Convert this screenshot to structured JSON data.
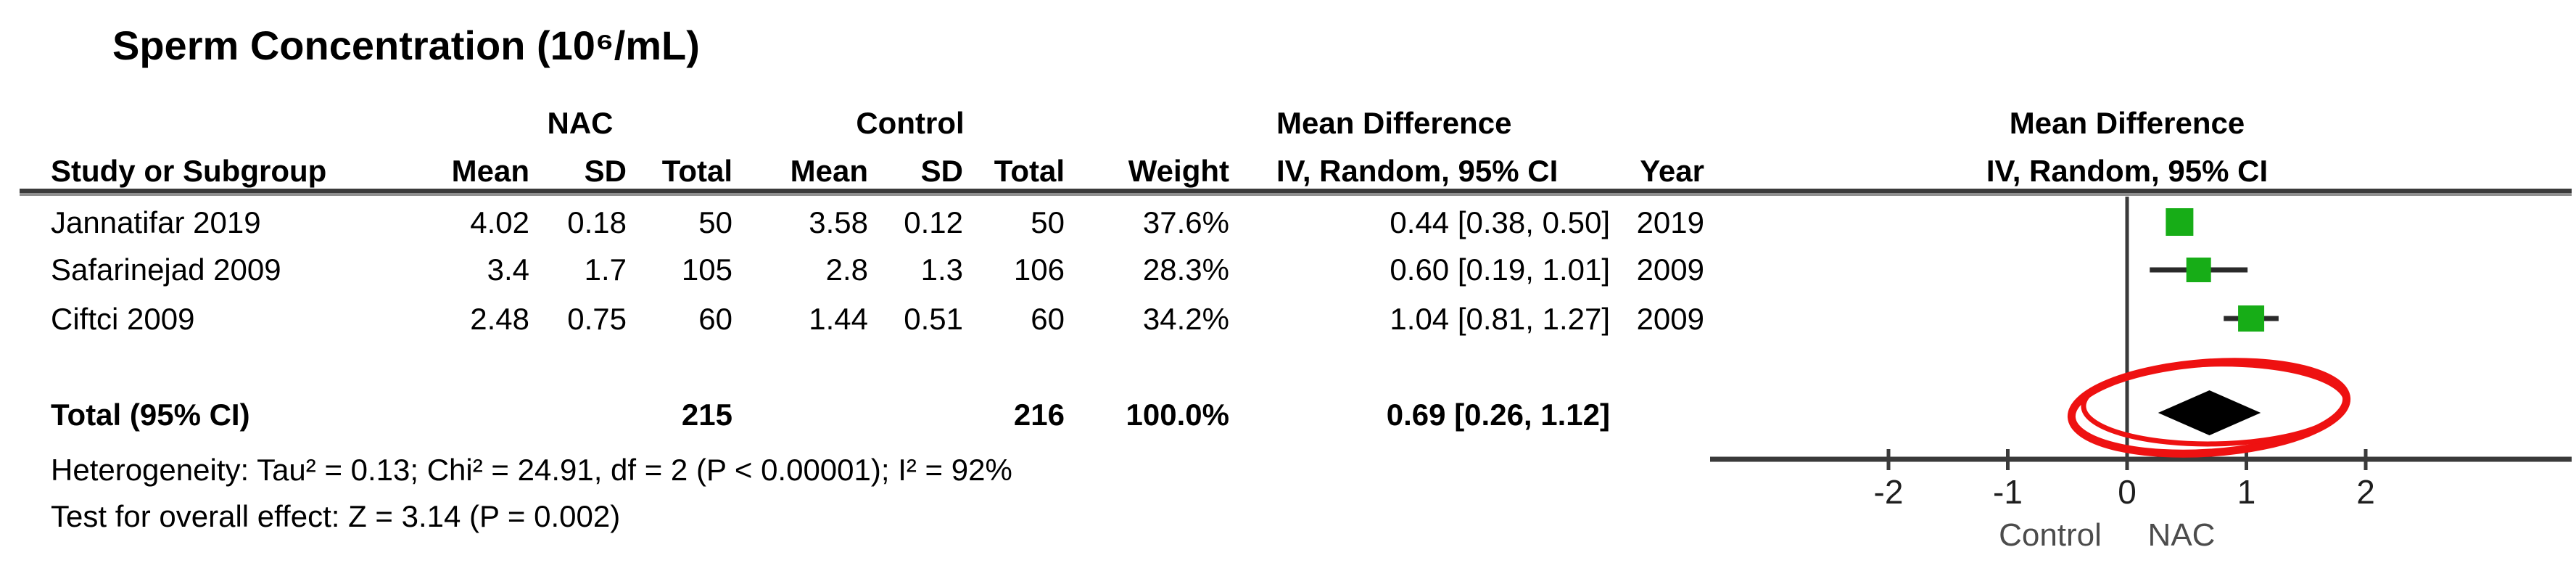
{
  "title": "Sperm Concentration (10⁶/mL)",
  "table": {
    "group_headers": {
      "nac": "NAC",
      "control": "Control",
      "md_left": "Mean Difference",
      "md_right": "Mean Difference"
    },
    "col_headers": {
      "study": "Study or Subgroup",
      "nac_mean": "Mean",
      "nac_sd": "SD",
      "nac_total": "Total",
      "ctl_mean": "Mean",
      "ctl_sd": "SD",
      "ctl_total": "Total",
      "weight": "Weight",
      "ci_left": "IV, Random, 95% CI",
      "year": "Year",
      "ci_right": "IV, Random, 95% CI"
    },
    "rows": [
      {
        "study": "Jannatifar 2019",
        "nac_mean": "4.02",
        "nac_sd": "0.18",
        "nac_total": "50",
        "ctl_mean": "3.58",
        "ctl_sd": "0.12",
        "ctl_total": "50",
        "weight": "37.6%",
        "ci": "0.44 [0.38, 0.50]",
        "year": "2019"
      },
      {
        "study": "Safarinejad 2009",
        "nac_mean": "3.4",
        "nac_sd": "1.7",
        "nac_total": "105",
        "ctl_mean": "2.8",
        "ctl_sd": "1.3",
        "ctl_total": "106",
        "weight": "28.3%",
        "ci": "0.60 [0.19, 1.01]",
        "year": "2009"
      },
      {
        "study": "Ciftci 2009",
        "nac_mean": "2.48",
        "nac_sd": "0.75",
        "nac_total": "60",
        "ctl_mean": "1.44",
        "ctl_sd": "0.51",
        "ctl_total": "60",
        "weight": "34.2%",
        "ci": "1.04 [0.81, 1.27]",
        "year": "2009"
      }
    ],
    "total": {
      "label": "Total (95% CI)",
      "nac_total": "215",
      "ctl_total": "216",
      "weight": "100.0%",
      "ci": "0.69 [0.26, 1.12]"
    },
    "heterogeneity": "Heterogeneity: Tau² = 0.13; Chi² = 24.91, df = 2 (P < 0.00001); I² = 92%",
    "overall_effect": "Test for overall effect: Z = 3.14 (P = 0.002)"
  },
  "chart_data": {
    "type": "forest",
    "title": "Sperm Concentration (10⁶/mL)",
    "effect_measure": "Mean Difference, IV, Random, 95% CI",
    "x_ticks": [
      -2,
      -1,
      0,
      1,
      2
    ],
    "xlim": [
      -2.8,
      3.7
    ],
    "x_axis_left_label": "Control",
    "x_axis_right_label": "NAC",
    "studies": [
      {
        "name": "Jannatifar 2019",
        "md": 0.44,
        "ci_low": 0.38,
        "ci_high": 0.5,
        "weight_pct": 37.6,
        "year": 2019
      },
      {
        "name": "Safarinejad 2009",
        "md": 0.6,
        "ci_low": 0.19,
        "ci_high": 1.01,
        "weight_pct": 28.3,
        "year": 2009
      },
      {
        "name": "Ciftci 2009",
        "md": 1.04,
        "ci_low": 0.81,
        "ci_high": 1.27,
        "weight_pct": 34.2,
        "year": 2009
      }
    ],
    "total": {
      "md": 0.69,
      "ci_low": 0.26,
      "ci_high": 1.12,
      "weight_pct": 100.0
    },
    "heterogeneity": {
      "tau2": 0.13,
      "chi2": 24.91,
      "df": 2,
      "p": "< 0.00001",
      "i2_pct": 92
    },
    "overall_effect": {
      "z": 3.14,
      "p": "= 0.002"
    },
    "colors": {
      "square": "#17ad17",
      "ci_line": "#2a2a2a",
      "diamond": "#000000",
      "axis": "#3a3a3a",
      "tick_label": "#1e1e1e",
      "axis_side_label": "#4c4c4c",
      "annotation_circle": "#ee1111"
    },
    "annotation": "hand-drawn red circle highlighting the pooled total diamond"
  }
}
